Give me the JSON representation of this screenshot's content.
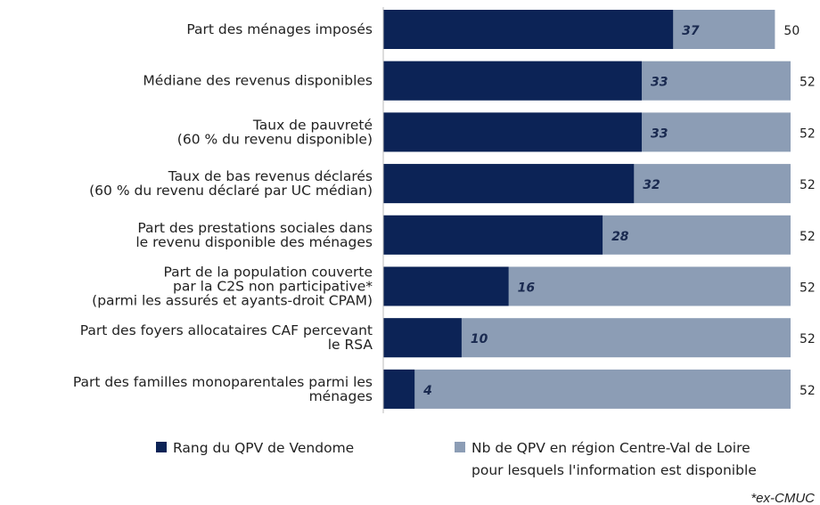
{
  "chart_data": {
    "type": "bar",
    "orientation": "horizontal",
    "overlap": true,
    "categories": [
      "Part des ménages imposés",
      "Médiane des revenus disponibles",
      "Taux de pauvreté\n(60 % du revenu disponible)",
      "Taux de bas revenus déclarés\n(60 % du revenu déclaré par UC médian)",
      "Part des prestations sociales dans\nle revenu disponible des ménages",
      "Part de la population couverte\npar la C2S non participative*\n(parmi les assurés et ayants-droit CPAM)",
      "Part des foyers allocataires CAF percevant\nle RSA",
      "Part des familles monoparentales parmi les\nménages"
    ],
    "series": [
      {
        "name": "Rang du QPV de Vendome",
        "color": "#0c2356",
        "values": [
          37,
          33,
          33,
          32,
          28,
          16,
          10,
          4
        ]
      },
      {
        "name": "Nb de QPV en région Centre-Val de Loire\npour lesquels l'information est disponible",
        "color": "#8c9db5",
        "values": [
          50,
          52,
          52,
          52,
          52,
          52,
          52,
          52
        ]
      }
    ],
    "xlim": [
      0,
      52
    ],
    "legend": "bottom",
    "footnote": "*ex-CMUC"
  }
}
